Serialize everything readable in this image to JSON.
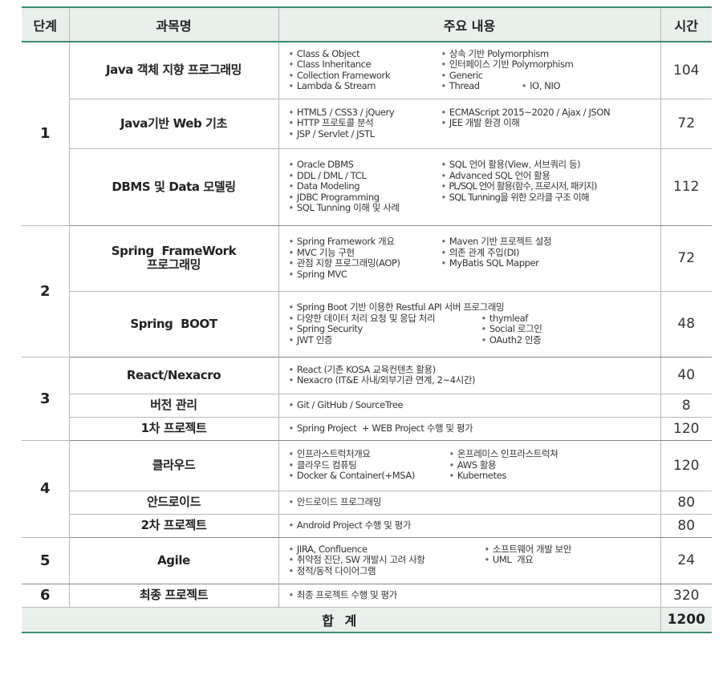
{
  "header": {
    "stage": "단계",
    "course": "과목명",
    "content": "주요 내용",
    "hours": "시간"
  },
  "rows": {
    "r1": {
      "stage": "1",
      "course": "Java 객체 지향 프로그래밍",
      "hours": "104",
      "items": [
        "Class & Object",
        "상속 기반 Polymorphism",
        "Class Inheritance",
        "인터페이스 기반 Polymorphism",
        "Collection Framework",
        "Generic",
        "Lambda & Stream",
        "Thread",
        "IO, NIO"
      ]
    },
    "r2": {
      "course": "Java기반 Web 기초",
      "hours": "72",
      "items": [
        "HTML5 / CSS3 / jQuery",
        "ECMAScript 2015~2020 / Ajax / JSON",
        "HTTP 프로토콜 분석",
        "JEE 개발 환경 이해",
        "JSP / Servlet / JSTL"
      ]
    },
    "r3": {
      "course": "DBMS 및 Data 모델링",
      "hours": "112",
      "items": [
        "Oracle DBMS",
        "SQL 언어 활용(View, 서브쿼리 등)",
        "DDL / DML / TCL",
        "Advanced SQL 언어 활용",
        "Data Modeling",
        "PL/SQL 언어 활용(함수, 프로시저, 패키지)",
        "JDBC Programming",
        "SQL Tunning을 위한 오라클 구조 이해",
        "SQL Tunning 이해 및 사례"
      ]
    },
    "r4": {
      "stage": "2",
      "course_line1": "Spring  FrameWork",
      "course_line2": "프로그래밍",
      "hours": "72",
      "items": [
        "Spring Framework 개요",
        "Maven 기반 프로젝트 설정",
        "MVC 기능 구현",
        "의존 관계 주입(DI)",
        "관점 지향 프로그래밍(AOP)",
        "MyBatis SQL Mapper",
        "Spring MVC"
      ]
    },
    "r5": {
      "course": "Spring  BOOT",
      "hours": "48",
      "items": [
        "Spring Boot 기반 이용한 Restful API 서버 프로그래밍",
        "다양한 데이터 처리 요청 및 응답 처리",
        "thymleaf",
        "Spring Security",
        "Social 로그인",
        "JWT 인증",
        "OAuth2 인증"
      ]
    },
    "r6": {
      "stage": "3",
      "course": "React/Nexacro",
      "hours": "40",
      "items": [
        "React (기존 KOSA 교육컨텐츠 활용)",
        "Nexacro (IT&E 사내/외부기관 연계, 2~4시간)"
      ]
    },
    "r7": {
      "course": "버전 관리",
      "hours": "8",
      "items": [
        "Git / GitHub / SourceTree"
      ]
    },
    "r8": {
      "course": "1차 프로젝트",
      "hours": "120",
      "items": [
        "Spring Project  + WEB Project 수행 및 평가"
      ]
    },
    "r9": {
      "stage": "4",
      "course": "클라우드",
      "hours": "120",
      "items": [
        "인프라스트럭처개요",
        "온프레미스 인프라스트럭쳐",
        "클라우드 컴퓨팅",
        "AWS 활용",
        "Docker & Container(+MSA)",
        "Kubernetes"
      ]
    },
    "r10": {
      "course": "안드로이드",
      "hours": "80",
      "items": [
        "안드로이드 프로그래밍"
      ]
    },
    "r11": {
      "course": "2차 프로젝트",
      "hours": "80",
      "items": [
        "Android Project 수행 및 평가"
      ]
    },
    "r12": {
      "stage": "5",
      "course": "Agile",
      "hours": "24",
      "items": [
        "JIRA, Confluence",
        "소프트웨어 개발 보안",
        "취약점 진단, SW 개발시 고려 사항",
        "UML  개요",
        "정적/동적 다이어그램"
      ]
    },
    "r13": {
      "stage": "6",
      "course": "최종 프로젝트",
      "hours": "320",
      "items": [
        "최종 프로젝트 수행 및 평가"
      ]
    }
  },
  "total": {
    "label": "합 계",
    "hours": "1200"
  }
}
